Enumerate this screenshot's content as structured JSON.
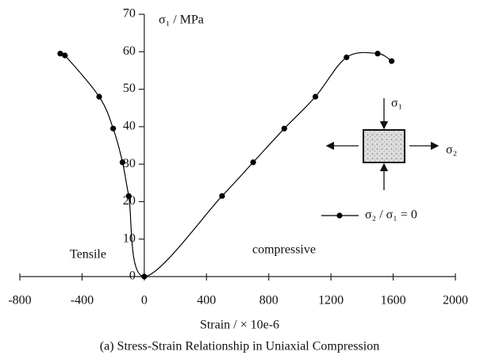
{
  "chart_data": {
    "type": "line",
    "y_label": "σ₁ / MPa",
    "x_label": "Strain / × 10e-6",
    "caption": "(a) Stress-Strain Relationship in Uniaxial Compression",
    "annotations": [
      "Tensile",
      "compressive",
      "σ₁",
      "σ₂"
    ],
    "x": [
      -540,
      -510,
      -290,
      -200,
      -140,
      -100,
      0,
      500,
      700,
      900,
      1100,
      1300,
      1500,
      1590
    ],
    "series": [
      {
        "name": "σ₂ / σ₁ = 0",
        "color": "#000000",
        "values": [
          59.5,
          59,
          48,
          39.5,
          30.5,
          21.5,
          0,
          21.5,
          30.5,
          39.5,
          48,
          58.5,
          59.5,
          57.5
        ]
      }
    ],
    "xlim": [
      -800,
      2000
    ],
    "xticks": [
      -800,
      -400,
      0,
      400,
      800,
      1200,
      1600,
      2000
    ],
    "ylim": [
      0,
      70
    ],
    "yticks": [
      0,
      10,
      20,
      30,
      40,
      50,
      60,
      70
    ]
  }
}
